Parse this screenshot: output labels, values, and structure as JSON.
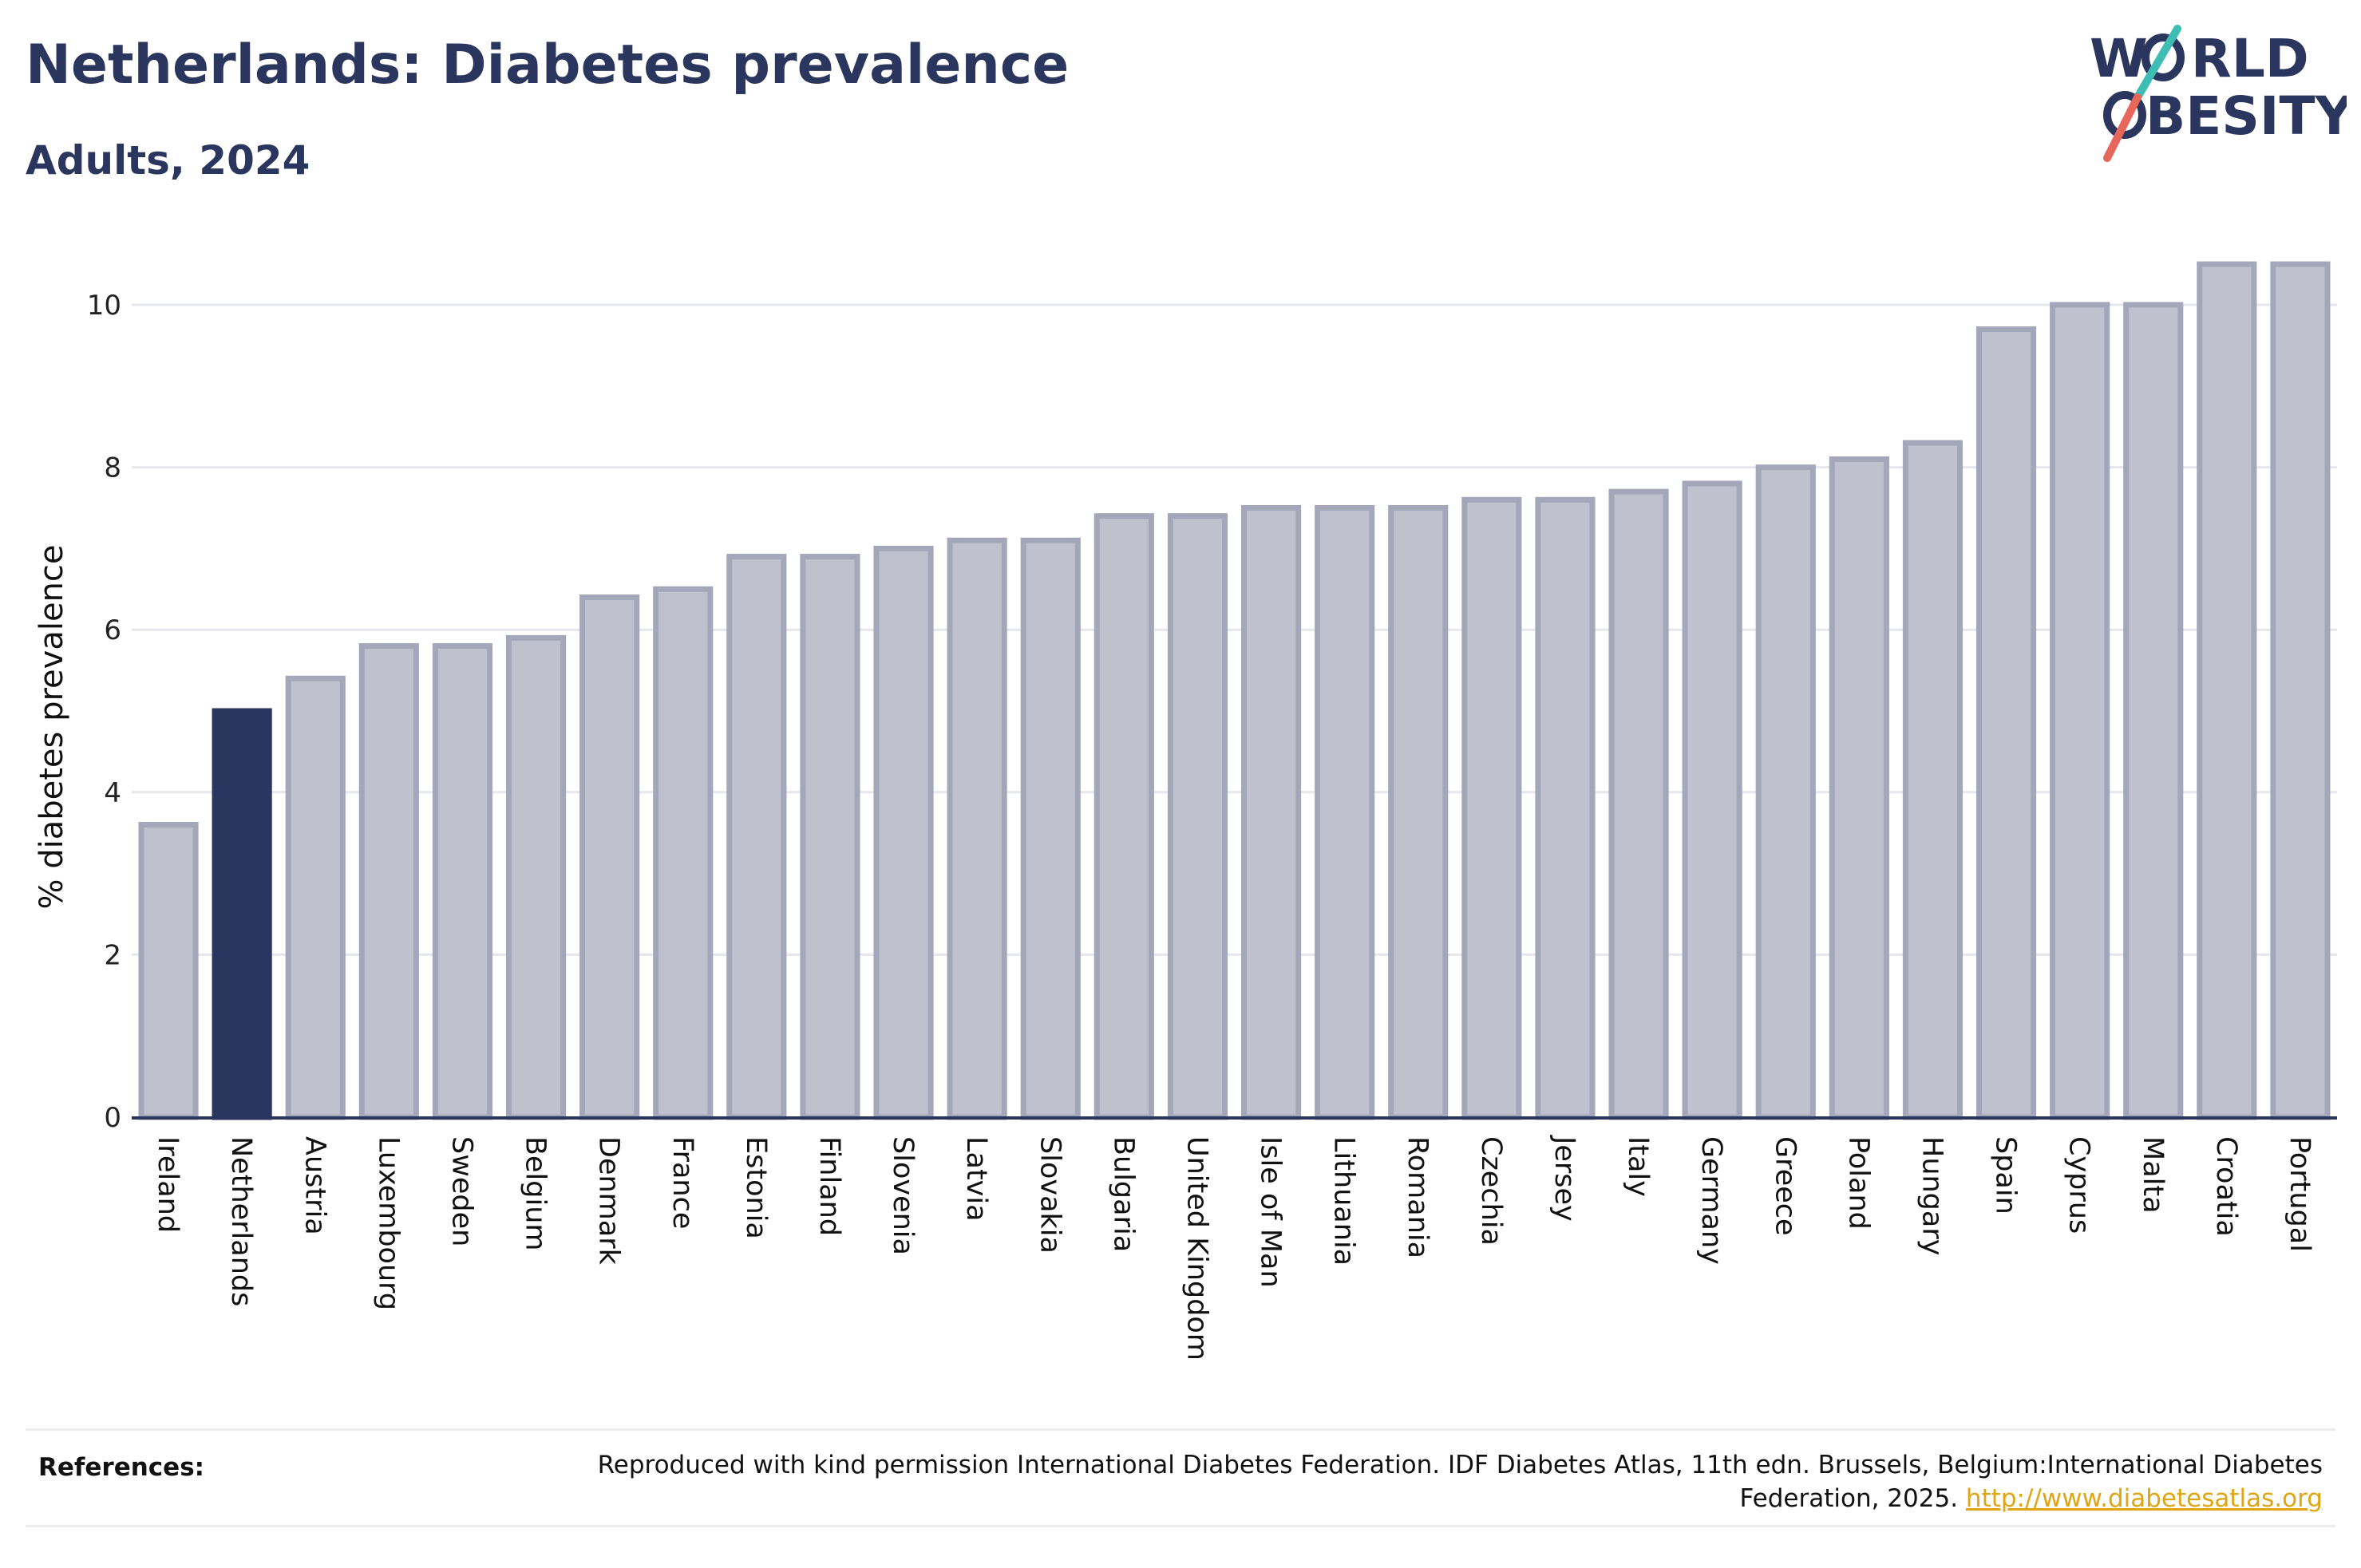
{
  "header": {
    "title": "Netherlands: Diabetes prevalence",
    "subtitle": "Adults, 2024"
  },
  "logo": {
    "line1_a": "W",
    "line1_b": "RLD",
    "line2_b": "BESITY",
    "text_color": "#2b365f",
    "slash_colors": [
      "#3ebdb4",
      "#e8675a"
    ]
  },
  "chart_data": {
    "type": "bar",
    "ylabel": "% diabetes prevalence",
    "ylim": [
      0,
      11
    ],
    "yticks": [
      0,
      2,
      4,
      6,
      8,
      10
    ],
    "grid": true,
    "highlight_category": "Netherlands",
    "colors": {
      "highlight": "#2b365f",
      "bar_fill": "#bfc1ce",
      "bar_stroke": "#a4a7ba"
    },
    "categories": [
      "Ireland",
      "Netherlands",
      "Austria",
      "Luxembourg",
      "Sweden",
      "Belgium",
      "Denmark",
      "France",
      "Estonia",
      "Finland",
      "Slovenia",
      "Latvia",
      "Slovakia",
      "Bulgaria",
      "United Kingdom",
      "Isle of Man",
      "Lithuania",
      "Romania",
      "Czechia",
      "Jersey",
      "Italy",
      "Germany",
      "Greece",
      "Poland",
      "Hungary",
      "Spain",
      "Cyprus",
      "Malta",
      "Croatia",
      "Portugal"
    ],
    "values": [
      3.6,
      5.0,
      5.4,
      5.8,
      5.8,
      5.9,
      6.4,
      6.5,
      6.9,
      6.9,
      7.0,
      7.1,
      7.1,
      7.4,
      7.4,
      7.5,
      7.5,
      7.5,
      7.6,
      7.6,
      7.7,
      7.8,
      8.0,
      8.1,
      8.3,
      9.7,
      10.0,
      10.0,
      10.5,
      10.5
    ]
  },
  "references": {
    "label": "References:",
    "text": "Reproduced with kind permission International Diabetes Federation. IDF Diabetes Atlas, 11th edn. Brussels, Belgium:International Diabetes Federation, 2025.",
    "link": "http://www.diabetesatlas.org"
  }
}
